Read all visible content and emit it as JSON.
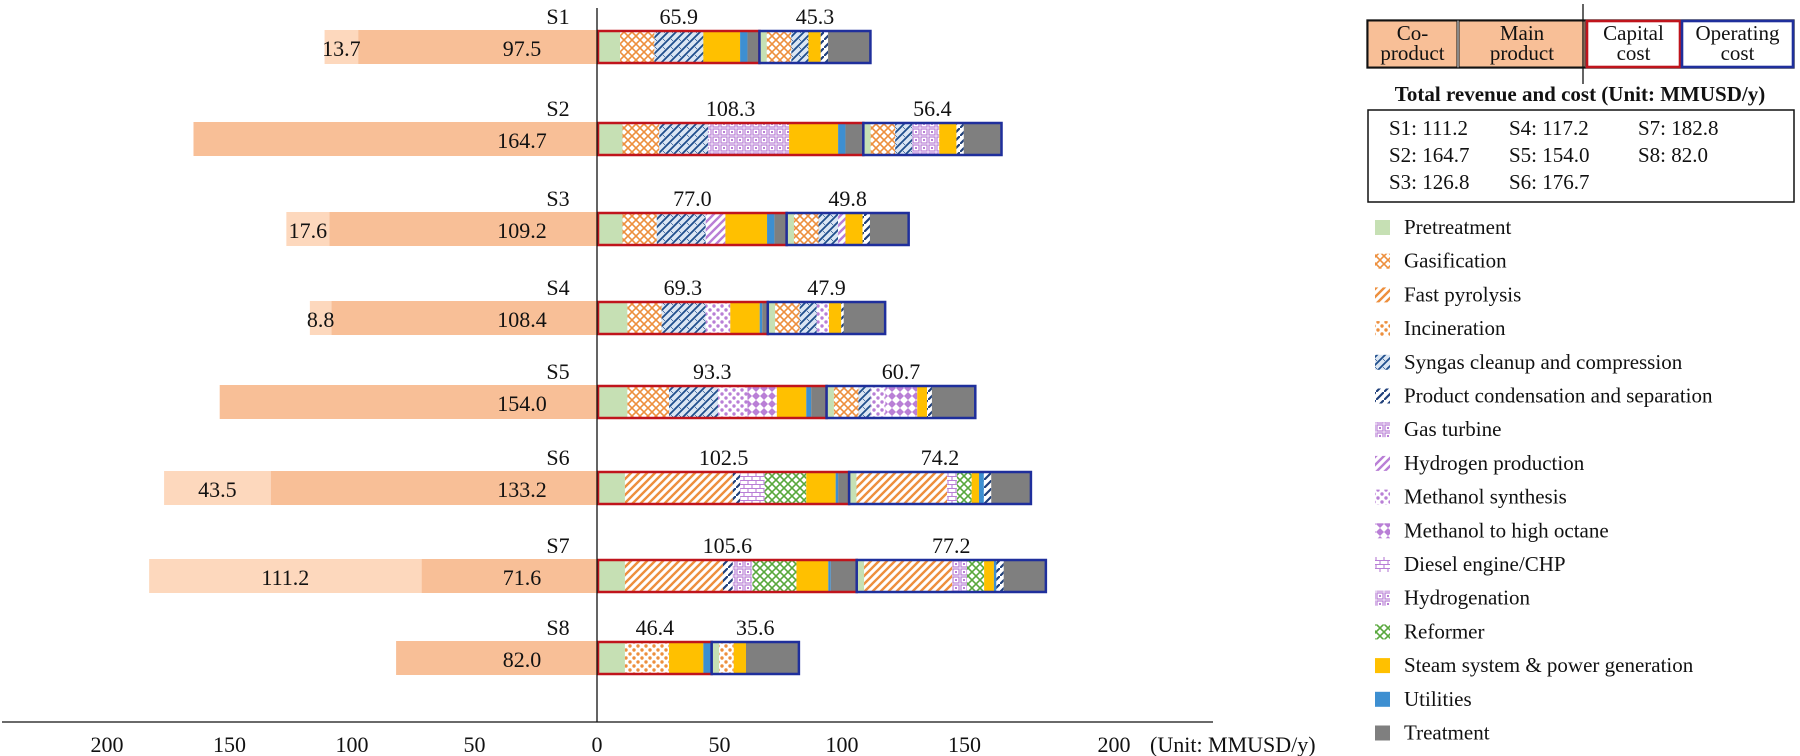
{
  "chart_data": {
    "type": "bar",
    "orientation": "horizontal",
    "x_unit_label": "(Unit:  MMUSD/y)",
    "x_ticks": [
      200,
      150,
      100,
      50,
      0,
      50,
      100,
      150,
      200
    ],
    "scenarios": [
      {
        "label": "S1",
        "co_product": 13.7,
        "main_product": 97.5,
        "capital": 65.9,
        "operating": 45.3,
        "capital_breakdown": [
          [
            "Pretreatment",
            9
          ],
          [
            "Gasification",
            14
          ],
          [
            "Syngas cleanup and compression",
            20
          ],
          [
            "Steam system & power generation",
            15
          ],
          [
            "Utilities",
            3
          ],
          [
            "Treatment",
            4.9
          ]
        ],
        "operating_breakdown": [
          [
            "Pretreatment",
            3
          ],
          [
            "Gasification",
            10
          ],
          [
            "Syngas cleanup and compression",
            7
          ],
          [
            "Steam system & power generation",
            5
          ],
          [
            "Product condensation and separation",
            3
          ],
          [
            "Treatment",
            17.3
          ]
        ]
      },
      {
        "label": "S2",
        "co_product": null,
        "main_product": 164.7,
        "capital": 108.3,
        "operating": 56.4,
        "capital_breakdown": [
          [
            "Pretreatment",
            10
          ],
          [
            "Gasification",
            15
          ],
          [
            "Syngas cleanup and compression",
            20
          ],
          [
            "Gas turbine",
            33
          ],
          [
            "Steam system & power generation",
            20
          ],
          [
            "Utilities",
            3
          ],
          [
            "Treatment",
            7.3
          ]
        ],
        "operating_breakdown": [
          [
            "Pretreatment",
            3
          ],
          [
            "Gasification",
            10
          ],
          [
            "Syngas cleanup and compression",
            7
          ],
          [
            "Gas turbine",
            11
          ],
          [
            "Steam system & power generation",
            7
          ],
          [
            "Product condensation and separation",
            3
          ],
          [
            "Treatment",
            15.4
          ]
        ]
      },
      {
        "label": "S3",
        "co_product": 17.6,
        "main_product": 109.2,
        "capital": 77.0,
        "operating": 49.8,
        "capital_breakdown": [
          [
            "Pretreatment",
            10
          ],
          [
            "Gasification",
            14
          ],
          [
            "Syngas cleanup and compression",
            20
          ],
          [
            "Hydrogen production",
            8
          ],
          [
            "Steam system & power generation",
            17
          ],
          [
            "Utilities",
            3
          ],
          [
            "Treatment",
            5
          ]
        ],
        "operating_breakdown": [
          [
            "Pretreatment",
            3
          ],
          [
            "Gasification",
            10
          ],
          [
            "Syngas cleanup and compression",
            8
          ],
          [
            "Hydrogen production",
            3
          ],
          [
            "Steam system & power generation",
            7
          ],
          [
            "Product condensation and separation",
            3
          ],
          [
            "Treatment",
            15.8
          ]
        ]
      },
      {
        "label": "S4",
        "co_product": 8.8,
        "main_product": 108.4,
        "capital": 69.3,
        "operating": 47.9,
        "capital_breakdown": [
          [
            "Pretreatment",
            12
          ],
          [
            "Gasification",
            14
          ],
          [
            "Syngas cleanup and compression",
            18
          ],
          [
            "Methanol synthesis",
            10
          ],
          [
            "Steam system & power generation",
            12
          ],
          [
            "Utilities",
            1
          ],
          [
            "Treatment",
            2.3
          ]
        ],
        "operating_breakdown": [
          [
            "Pretreatment",
            3
          ],
          [
            "Gasification",
            10
          ],
          [
            "Syngas cleanup and compression",
            7
          ],
          [
            "Methanol synthesis",
            5
          ],
          [
            "Steam system & power generation",
            5
          ],
          [
            "Product condensation and separation",
            1
          ],
          [
            "Treatment",
            16.9
          ]
        ]
      },
      {
        "label": "S5",
        "co_product": null,
        "main_product": 154.0,
        "capital": 93.3,
        "operating": 60.7,
        "capital_breakdown": [
          [
            "Pretreatment",
            12
          ],
          [
            "Gasification",
            17
          ],
          [
            "Syngas cleanup and compression",
            20
          ],
          [
            "Methanol synthesis",
            12
          ],
          [
            "Methanol to high octane",
            12
          ],
          [
            "Steam system & power generation",
            12
          ],
          [
            "Utilities",
            2
          ],
          [
            "Treatment",
            6.3
          ]
        ],
        "operating_breakdown": [
          [
            "Pretreatment",
            3
          ],
          [
            "Gasification",
            10
          ],
          [
            "Syngas cleanup and compression",
            5
          ],
          [
            "Methanol synthesis",
            6
          ],
          [
            "Methanol to high octane",
            13
          ],
          [
            "Steam system & power generation",
            4
          ],
          [
            "Product condensation and separation",
            2
          ],
          [
            "Treatment",
            17.7
          ]
        ]
      },
      {
        "label": "S6",
        "co_product": 43.5,
        "main_product": 133.2,
        "capital": 102.5,
        "operating": 74.2,
        "capital_breakdown": [
          [
            "Pretreatment",
            11
          ],
          [
            "Fast pyrolysis",
            44
          ],
          [
            "Product condensation and separation",
            3
          ],
          [
            "Diesel engine/CHP",
            10
          ],
          [
            "Reformer",
            17
          ],
          [
            "Steam system & power generation",
            12
          ],
          [
            "Utilities",
            1
          ],
          [
            "Treatment",
            4.5
          ]
        ],
        "operating_breakdown": [
          [
            "Pretreatment",
            3
          ],
          [
            "Fast pyrolysis",
            37
          ],
          [
            "Diesel engine/CHP",
            4
          ],
          [
            "Reformer",
            6
          ],
          [
            "Steam system & power generation",
            3
          ],
          [
            "Utilities",
            2
          ],
          [
            "Product condensation and separation",
            3
          ],
          [
            "Treatment",
            16.2
          ]
        ]
      },
      {
        "label": "S7",
        "co_product": 111.2,
        "main_product": 71.6,
        "capital": 105.6,
        "operating": 77.2,
        "capital_breakdown": [
          [
            "Pretreatment",
            11
          ],
          [
            "Fast pyrolysis",
            40
          ],
          [
            "Product condensation and separation",
            4
          ],
          [
            "Hydrogenation",
            8
          ],
          [
            "Reformer",
            18
          ],
          [
            "Steam system & power generation",
            13
          ],
          [
            "Utilities",
            1
          ],
          [
            "Treatment",
            10.6
          ]
        ],
        "operating_breakdown": [
          [
            "Pretreatment",
            3
          ],
          [
            "Fast pyrolysis",
            36
          ],
          [
            "Hydrogenation",
            6
          ],
          [
            "Reformer",
            7
          ],
          [
            "Steam system & power generation",
            4
          ],
          [
            "Utilities",
            1
          ],
          [
            "Product condensation and separation",
            3
          ],
          [
            "Treatment",
            17.2
          ]
        ]
      },
      {
        "label": "S8",
        "co_product": null,
        "main_product": 82.0,
        "capital": 46.4,
        "operating": 35.6,
        "capital_breakdown": [
          [
            "Pretreatment",
            11
          ],
          [
            "Incineration",
            18
          ],
          [
            "Steam system & power generation",
            14
          ],
          [
            "Utilities",
            3
          ],
          [
            "Treatment",
            0.4
          ]
        ],
        "operating_breakdown": [
          [
            "Pretreatment",
            3
          ],
          [
            "Incineration",
            6
          ],
          [
            "Steam system & power generation",
            5
          ],
          [
            "Treatment",
            21.6
          ]
        ]
      }
    ]
  },
  "legend_header": {
    "co_product": "Co-\nproduct",
    "main_product": "Main\nproduct",
    "capital": "Capital\ncost",
    "operating": "Operating\ncost"
  },
  "totals_title": "Total revenue and cost (Unit:  MMUSD/y)",
  "totals": [
    "S1: 111.2",
    "S4: 117.2",
    "S7: 182.8",
    "S2: 164.7",
    "S5: 154.0",
    "S8: 82.0",
    "S3: 126.8",
    "S6: 176.7"
  ],
  "legend_items": [
    "Pretreatment",
    "Gasification",
    "Fast pyrolysis",
    "Incineration",
    "Syngas cleanup and compression",
    "Product condensation and separation",
    "Gas turbine",
    "Hydrogen production",
    "Methanol synthesis",
    "Methanol to high octane",
    "Diesel engine/CHP",
    "Hydrogenation",
    "Reformer",
    "Steam system & power generation",
    "Utilities",
    "Treatment"
  ],
  "colors": {
    "main_product": "#f8bf97",
    "co_product": "#fdd8bd",
    "capital_border": "#c0141c",
    "operating_border": "#1f2f9c",
    "Pretreatment": "#c6e0b4",
    "Gasification": "#ed8f3d",
    "Fast pyrolysis": "#ed8f3d",
    "Incineration": "#ed8f3d",
    "Syngas cleanup and compression": "#1f4e8c",
    "Product condensation and separation": "#1f3f7a",
    "Gas turbine": "#b97fd6",
    "Hydrogen production": "#b97fd6",
    "Methanol synthesis": "#b97fd6",
    "Methanol to high octane": "#b97fd6",
    "Diesel engine/CHP": "#b97fd6",
    "Hydrogenation": "#b97fd6",
    "Reformer": "#58a83c",
    "Steam system & power generation": "#ffc000",
    "Utilities": "#3d8fd1",
    "Treatment": "#7f7f7f"
  }
}
